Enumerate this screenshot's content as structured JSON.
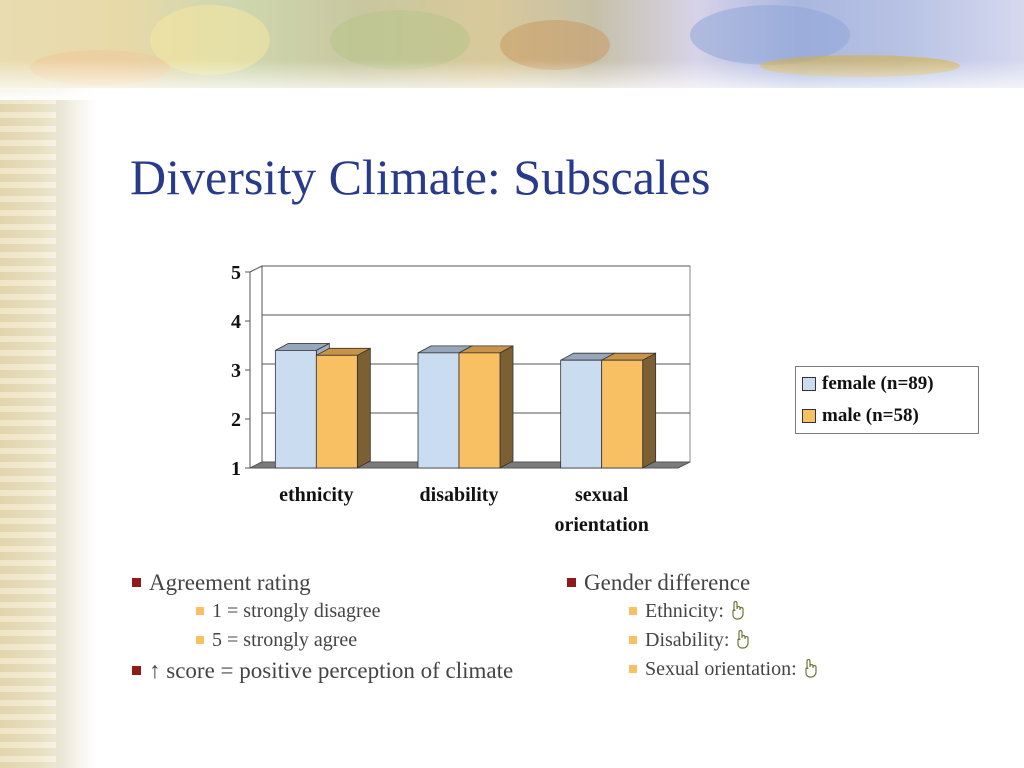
{
  "slide": {
    "title": "Diversity Climate: Subscales"
  },
  "chart_data": {
    "type": "bar",
    "categories": [
      "ethnicity",
      "disability",
      "sexual orientation"
    ],
    "category_lines": [
      [
        "ethnicity"
      ],
      [
        "disability"
      ],
      [
        "sexual",
        "orientation"
      ]
    ],
    "series": [
      {
        "name": "female (n=89)",
        "values": [
          3.4,
          3.35,
          3.2
        ],
        "color": "#c9dcf0",
        "side": "#9fb0c4",
        "top": "#96a7bb"
      },
      {
        "name": "male (n=58)",
        "values": [
          3.3,
          3.35,
          3.2
        ],
        "color": "#f8bf63",
        "side": "#7c5f33",
        "top": "#c89447"
      }
    ],
    "ylim": [
      1,
      5
    ],
    "yticks": [
      "1",
      "2",
      "3",
      "4",
      "5"
    ],
    "grid": true,
    "legend_position": "right",
    "style": "3d-clustered-column"
  },
  "legend": {
    "female": "female (n=89)",
    "male": "male (n=58)"
  },
  "bullets_left": {
    "agreement": "Agreement rating",
    "sub1": "1 = strongly disagree",
    "sub2": "5 = strongly agree",
    "score": "↑ score = positive perception of climate"
  },
  "bullets_right": {
    "gender": "Gender difference",
    "sub1": "Ethnicity:",
    "sub2": "Disability:",
    "sub3": "Sexual orientation:"
  },
  "icons": {
    "bullet_primary": "square-bullet-red",
    "bullet_secondary": "square-bullet-orange",
    "no_difference": "pointing-hand-icon"
  },
  "colors": {
    "title": "#283a8a",
    "bullet_primary": "#8e1a1a",
    "bullet_secondary": "#f8bf63"
  }
}
